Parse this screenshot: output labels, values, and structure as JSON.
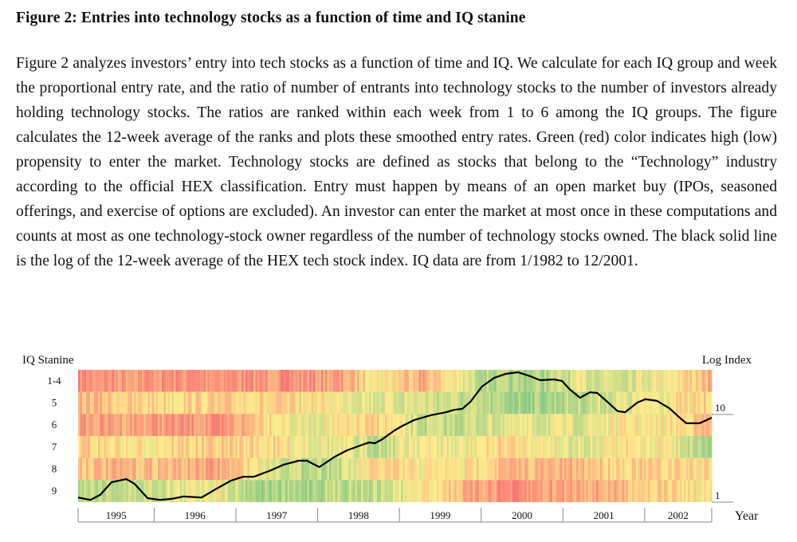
{
  "title": "Figure 2: Entries into technology stocks as a function of time and IQ stanine",
  "paragraph": "Figure 2 analyzes investors’ entry into tech stocks as a function of time and IQ. We calculate for each IQ group and week the proportional entry rate, and the ratio of number of entrants into technology stocks to the number of investors already holding technology stocks. The ratios are ranked within each week from 1 to 6 among the IQ groups. The figure calculates the 12-week average of the ranks and plots these smoothed entry rates. Green (red) color indicates high (low) propensity to enter the market. Technology stocks are defined as stocks that belong to the “Technology” industry according to the official HEX classification. Entry must happen by means of an open market buy (IPOs, seasoned offerings, and exercise of options are excluded). An investor can enter the market at most once in these computations and counts at most as one technology-stock owner regardless of the number of technology stocks owned. The black solid line is the log of the 12-week average of the HEX tech stock index. IQ data are from 1/1982 to 12/2001.",
  "chart_data": {
    "type": "heatmap",
    "ylabel_left": "IQ Stanine",
    "ylabel_right": "Log Index",
    "xlabel": "Year",
    "rows": [
      "1-4",
      "5",
      "6",
      "7",
      "8",
      "9"
    ],
    "x_tick_labels": [
      "1995",
      "1996",
      "1997",
      "1998",
      "1999",
      "2000",
      "2001",
      "2002"
    ],
    "xlim": [
      1995.07,
      2002.82
    ],
    "right_axis": {
      "scale": "log",
      "tick_labels": [
        "10",
        "1"
      ],
      "ticks": [
        10,
        1
      ],
      "ylim": [
        1,
        32
      ]
    },
    "color_scale": {
      "low_rank": "#f8696b",
      "mid_rank": "#ffeb84",
      "high_rank": "#63be7b",
      "rank_range": [
        1,
        6
      ]
    },
    "heatmap_periods": [
      "1995H1",
      "1995H2",
      "1996H1",
      "1996H2",
      "1997H1",
      "1997H2",
      "1998H1",
      "1998H2",
      "1999H1",
      "1999H2",
      "2000H1",
      "2000H2",
      "2001H1",
      "2001H2",
      "2002H1",
      "2002H2"
    ],
    "heatmap_avg_rank": [
      [
        1.6,
        1.8,
        1.7,
        1.6,
        1.8,
        1.7,
        2.0,
        3.5,
        2.0,
        4.0,
        5.0,
        4.8,
        4.0,
        4.0,
        3.5,
        2.5
      ],
      [
        2.5,
        3.0,
        3.0,
        3.0,
        3.0,
        3.2,
        3.5,
        4.0,
        4.0,
        4.5,
        5.0,
        5.0,
        4.5,
        4.0,
        3.5,
        3.0
      ],
      [
        2.0,
        2.0,
        1.8,
        1.8,
        2.5,
        4.0,
        3.5,
        3.0,
        4.5,
        4.5,
        4.0,
        4.0,
        4.0,
        3.5,
        3.5,
        2.5
      ],
      [
        3.0,
        3.5,
        3.0,
        3.0,
        3.0,
        3.5,
        4.0,
        4.5,
        3.5,
        4.0,
        3.0,
        3.5,
        4.0,
        3.5,
        3.5,
        5.0
      ],
      [
        2.5,
        2.5,
        2.5,
        2.0,
        3.5,
        4.5,
        4.5,
        3.0,
        3.5,
        3.5,
        2.5,
        2.5,
        2.5,
        3.0,
        3.0,
        3.0
      ],
      [
        4.5,
        4.5,
        4.0,
        3.5,
        5.0,
        5.0,
        4.5,
        4.5,
        3.5,
        2.5,
        1.5,
        2.0,
        2.0,
        2.5,
        3.0,
        3.5
      ]
    ],
    "line_series": {
      "x": [
        1995.07,
        1995.22,
        1995.34,
        1995.48,
        1995.66,
        1995.76,
        1995.92,
        1996.07,
        1996.21,
        1996.36,
        1996.58,
        1996.75,
        1996.94,
        1997.09,
        1997.22,
        1997.43,
        1997.58,
        1997.77,
        1997.87,
        1998.02,
        1998.21,
        1998.36,
        1998.52,
        1998.63,
        1998.7,
        1998.79,
        1998.94,
        1999.04,
        1999.18,
        1999.38,
        1999.57,
        1999.67,
        1999.77,
        1999.87,
        2000.01,
        2000.16,
        2000.3,
        2000.45,
        2000.6,
        2000.72,
        2000.89,
        2000.99,
        2001.08,
        2001.21,
        2001.33,
        2001.42,
        2001.52,
        2001.67,
        2001.76,
        2001.91,
        2002.01,
        2002.15,
        2002.3,
        2002.45,
        2002.51,
        2002.67,
        2002.76,
        2002.82
      ],
      "y": [
        1.13,
        1.06,
        1.21,
        1.69,
        1.83,
        1.62,
        1.11,
        1.06,
        1.09,
        1.16,
        1.13,
        1.4,
        1.76,
        1.95,
        1.95,
        2.31,
        2.67,
        2.97,
        2.97,
        2.51,
        3.3,
        3.9,
        4.42,
        4.8,
        4.7,
        5.22,
        6.58,
        7.45,
        8.63,
        9.78,
        10.6,
        11.3,
        11.6,
        14.0,
        20.8,
        26.2,
        29.0,
        30.3,
        27.3,
        24.6,
        25.1,
        24.1,
        19.5,
        15.5,
        17.9,
        17.6,
        14.6,
        10.9,
        10.6,
        13.7,
        14.9,
        14.3,
        11.8,
        8.83,
        7.94,
        7.94,
        8.63,
        9.2
      ],
      "color": "#000000"
    }
  }
}
